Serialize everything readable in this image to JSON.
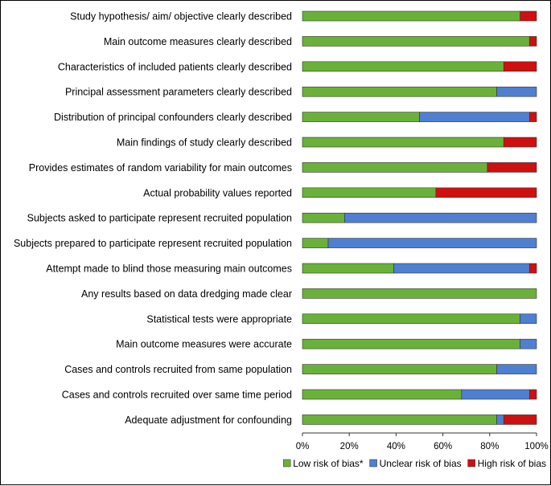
{
  "chart_data": {
    "type": "bar",
    "orientation": "horizontal",
    "stacked": true,
    "categories": [
      "Study hypothesis/ aim/ objective clearly described",
      "Main outcome measures clearly described",
      "Characteristics of included patients clearly described",
      "Principal assessment parameters clearly described",
      "Distribution of principal confounders clearly described",
      "Main findings of study clearly described",
      "Provides estimates of random variability for main outcomes",
      "Actual probability values reported",
      "Subjects asked to participate represent recruited population",
      "Subjects prepared to participate represent recruited population",
      "Attempt made to blind those measuring main outcomes",
      "Any results based on data dredging made clear",
      "Statistical tests were appropriate",
      "Main outcome measures were accurate",
      "Cases and controls recruited from same population",
      "Cases and controls recruited over same time period",
      "Adequate adjustment for confounding"
    ],
    "series": [
      {
        "name": "Low risk of bias*",
        "color": "#6ab139",
        "values": [
          93,
          97,
          86,
          83,
          50,
          86,
          79,
          57,
          18,
          11,
          39,
          100,
          93,
          93,
          83,
          68,
          83
        ]
      },
      {
        "name": "Unclear risk of bias",
        "color": "#4f7fd1",
        "values": [
          0,
          0,
          0,
          17,
          47,
          0,
          0,
          0,
          82,
          89,
          58,
          0,
          7,
          7,
          17,
          29,
          3
        ]
      },
      {
        "name": "High risk of bias",
        "color": "#cf1010",
        "values": [
          7,
          3,
          14,
          0,
          3,
          14,
          21,
          43,
          0,
          0,
          3,
          0,
          0,
          0,
          0,
          3,
          14
        ]
      }
    ],
    "xlim": [
      0,
      100
    ],
    "x_ticks": [
      "0%",
      "20%",
      "40%",
      "60%",
      "80%",
      "100%"
    ],
    "grid": false,
    "legend_position": "bottom-right"
  }
}
